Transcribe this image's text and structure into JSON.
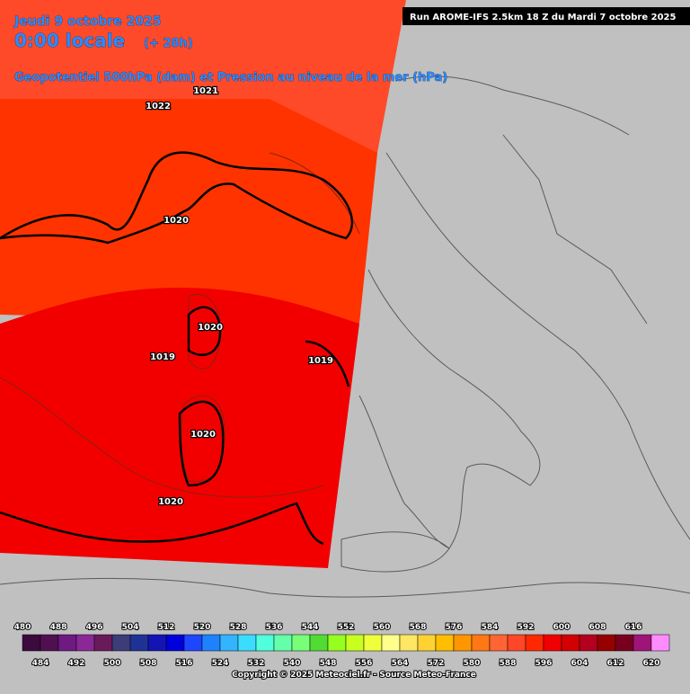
{
  "header": {
    "date": "Jeudi 9 octobre 2025",
    "time": "0:00 locale",
    "lead": "(+ 28h)",
    "parameter": "Geopotentiel 500hPa (dam) et Pression au niveau de la mer (hPa)",
    "run": "Run AROME-IFS 2.5km 18 Z du Mardi 7 octobre 2025"
  },
  "isobar_labels": [
    1021,
    1022,
    1020,
    1020,
    1019,
    1019,
    1020,
    1020
  ],
  "legend": {
    "top_labels": [
      480,
      488,
      496,
      504,
      512,
      520,
      528,
      536,
      544,
      552,
      560,
      568,
      576,
      584,
      592,
      600,
      608,
      616
    ],
    "bottom_labels": [
      484,
      492,
      500,
      508,
      516,
      524,
      532,
      540,
      548,
      556,
      564,
      572,
      580,
      588,
      596,
      604,
      612,
      620
    ],
    "colors": [
      "#3c0a3c",
      "#501050",
      "#6e1a82",
      "#8a2896",
      "#6a1a5a",
      "#3c3c78",
      "#1e3296",
      "#1414b4",
      "#0000dc",
      "#1e46ff",
      "#1e82ff",
      "#32b4ff",
      "#3cdcff",
      "#50ffdc",
      "#64ffaa",
      "#78ff78",
      "#50dc32",
      "#96ff1e",
      "#c8ff1e",
      "#f0ff3c",
      "#ffff8c",
      "#ffe664",
      "#ffd232",
      "#ffbe00",
      "#ff9600",
      "#ff7814",
      "#ff6432",
      "#ff4628",
      "#ff2800",
      "#f00000",
      "#d20000",
      "#b4001e",
      "#960000",
      "#78001e",
      "#a01478",
      "#ff8cff"
    ]
  },
  "footer": {
    "copyright": "Copyright © 2025 Meteociel.fr - Source Meteo-France"
  }
}
